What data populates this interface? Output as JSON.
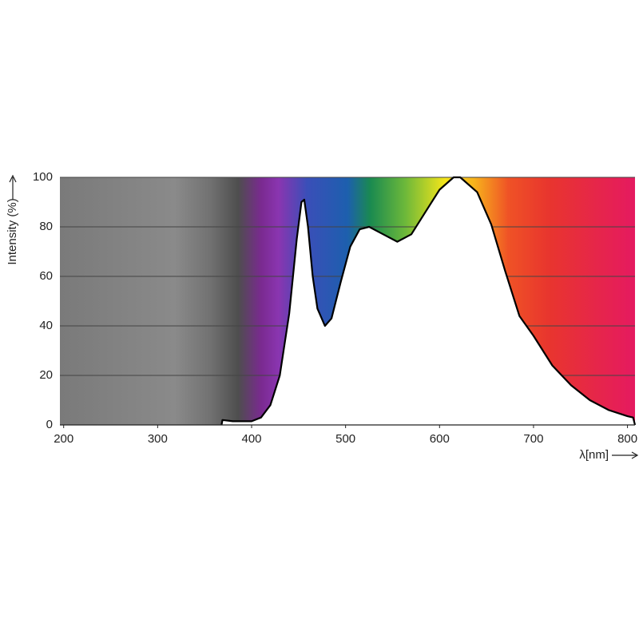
{
  "chart_data": {
    "type": "area",
    "y_label": "Intensity (%)",
    "x_label": "λ[nm]",
    "x": [
      368,
      369,
      380,
      400,
      410,
      420,
      430,
      440,
      448,
      453,
      456,
      460,
      465,
      470,
      478,
      485,
      495,
      505,
      515,
      525,
      540,
      555,
      570,
      585,
      600,
      615,
      622,
      640,
      655,
      670,
      685,
      700,
      720,
      740,
      760,
      780,
      800,
      806,
      808
    ],
    "values": [
      0,
      2,
      1.5,
      1.5,
      3,
      8,
      20,
      45,
      75,
      90,
      91,
      80,
      60,
      47,
      40,
      43,
      58,
      72,
      79,
      80,
      77,
      74,
      77,
      86,
      95,
      100,
      100,
      94,
      81,
      62,
      44,
      36,
      24,
      16,
      10,
      6,
      3.5,
      3,
      0
    ],
    "color": "#ffffff",
    "line_color": "#000000",
    "xlim": [
      196,
      808
    ],
    "ylim": [
      0,
      100
    ],
    "xticks": [
      200,
      300,
      400,
      500,
      600,
      700,
      800
    ],
    "yticks": [
      0,
      20,
      40,
      60,
      80,
      100
    ],
    "grid": true
  }
}
